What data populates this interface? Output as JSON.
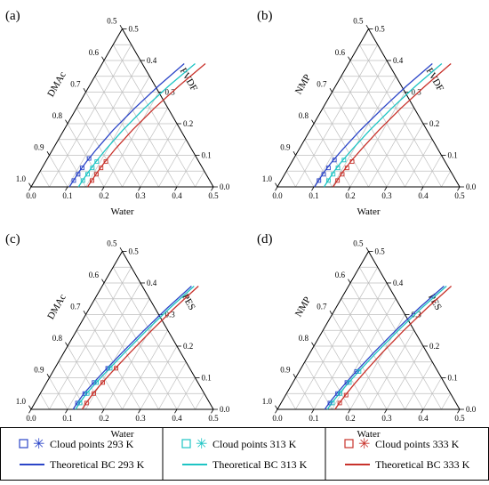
{
  "colors": {
    "k293": "#2b45c8",
    "k313": "#1ec4c4",
    "k333": "#c8322b",
    "grid": "#bfbfbf",
    "axis": "#000000"
  },
  "ticks": [
    "0.0",
    "0.1",
    "0.2",
    "0.3",
    "0.4",
    "0.5"
  ],
  "left_ticks": [
    "1.0",
    "0.9",
    "0.8",
    "0.7",
    "0.6",
    "0.5"
  ],
  "legend": {
    "cloud_293": "Cloud points 293 K",
    "cloud_313": "Cloud points 313 K",
    "cloud_333": "Cloud points 333 K",
    "bc_293": "Theoretical BC 293 K",
    "bc_313": "Theoretical BC 313 K",
    "bc_333": "Theoretical BC 333 K"
  },
  "chart_data": [
    {
      "type": "ternary",
      "panel": "(a)",
      "axes": {
        "bottom": "Water",
        "left": "DMAc",
        "right": "PVDF"
      },
      "range": [
        0,
        0.5
      ],
      "series": [
        {
          "temp": "293 K",
          "kind": "binodal",
          "points": [
            [
              0.105,
              0.0
            ],
            [
              0.106,
              0.02
            ],
            [
              0.108,
              0.05
            ],
            [
              0.112,
              0.08
            ],
            [
              0.12,
              0.12
            ],
            [
              0.135,
              0.18
            ],
            [
              0.16,
              0.25
            ],
            [
              0.19,
              0.32
            ],
            [
              0.225,
              0.39
            ]
          ]
        },
        {
          "temp": "313 K",
          "kind": "binodal",
          "points": [
            [
              0.13,
              0.0
            ],
            [
              0.131,
              0.02
            ],
            [
              0.134,
              0.05
            ],
            [
              0.138,
              0.08
            ],
            [
              0.146,
              0.12
            ],
            [
              0.162,
              0.18
            ],
            [
              0.187,
              0.25
            ],
            [
              0.218,
              0.32
            ],
            [
              0.255,
              0.39
            ]
          ]
        },
        {
          "temp": "333 K",
          "kind": "binodal",
          "points": [
            [
              0.155,
              0.0
            ],
            [
              0.156,
              0.02
            ],
            [
              0.159,
              0.05
            ],
            [
              0.163,
              0.08
            ],
            [
              0.171,
              0.12
            ],
            [
              0.188,
              0.18
            ],
            [
              0.214,
              0.25
            ],
            [
              0.246,
              0.32
            ],
            [
              0.283,
              0.39
            ]
          ]
        },
        {
          "temp": "293 K",
          "kind": "cloud",
          "points": [
            [
              0.107,
              0.02
            ],
            [
              0.109,
              0.04
            ],
            [
              0.11,
              0.06
            ],
            [
              0.114,
              0.09
            ]
          ]
        },
        {
          "temp": "313 K",
          "kind": "cloud",
          "points": [
            [
              0.132,
              0.02
            ],
            [
              0.135,
              0.04
            ],
            [
              0.138,
              0.06
            ],
            [
              0.14,
              0.08
            ]
          ]
        },
        {
          "temp": "333 K",
          "kind": "cloud",
          "points": [
            [
              0.157,
              0.02
            ],
            [
              0.159,
              0.04
            ],
            [
              0.162,
              0.06
            ],
            [
              0.165,
              0.08
            ]
          ]
        }
      ]
    },
    {
      "type": "ternary",
      "panel": "(b)",
      "axes": {
        "bottom": "Water",
        "left": "NMP",
        "right": "PVDF"
      },
      "range": [
        0,
        0.5
      ],
      "series": [
        {
          "temp": "293 K",
          "kind": "binodal",
          "points": [
            [
              0.102,
              0.0
            ],
            [
              0.103,
              0.02
            ],
            [
              0.105,
              0.05
            ],
            [
              0.11,
              0.08
            ],
            [
              0.12,
              0.12
            ],
            [
              0.138,
              0.18
            ],
            [
              0.165,
              0.25
            ],
            [
              0.195,
              0.32
            ],
            [
              0.23,
              0.39
            ]
          ]
        },
        {
          "temp": "313 K",
          "kind": "binodal",
          "points": [
            [
              0.128,
              0.0
            ],
            [
              0.129,
              0.02
            ],
            [
              0.131,
              0.05
            ],
            [
              0.136,
              0.08
            ],
            [
              0.146,
              0.12
            ],
            [
              0.164,
              0.18
            ],
            [
              0.19,
              0.25
            ],
            [
              0.22,
              0.32
            ],
            [
              0.256,
              0.39
            ]
          ]
        },
        {
          "temp": "333 K",
          "kind": "binodal",
          "points": [
            [
              0.153,
              0.0
            ],
            [
              0.154,
              0.02
            ],
            [
              0.156,
              0.05
            ],
            [
              0.161,
              0.08
            ],
            [
              0.171,
              0.12
            ],
            [
              0.189,
              0.18
            ],
            [
              0.215,
              0.25
            ],
            [
              0.246,
              0.32
            ],
            [
              0.281,
              0.39
            ]
          ]
        },
        {
          "temp": "293 K",
          "kind": "cloud",
          "points": [
            [
              0.104,
              0.02
            ],
            [
              0.107,
              0.04
            ],
            [
              0.11,
              0.06
            ],
            [
              0.114,
              0.085
            ]
          ]
        },
        {
          "temp": "313 K",
          "kind": "cloud",
          "points": [
            [
              0.13,
              0.02
            ],
            [
              0.133,
              0.04
            ],
            [
              0.136,
              0.06
            ],
            [
              0.14,
              0.085
            ]
          ]
        },
        {
          "temp": "333 K",
          "kind": "cloud",
          "points": [
            [
              0.155,
              0.02
            ],
            [
              0.158,
              0.04
            ],
            [
              0.161,
              0.06
            ],
            [
              0.165,
              0.08
            ]
          ]
        }
      ]
    },
    {
      "type": "ternary",
      "panel": "(c)",
      "axes": {
        "bottom": "Water",
        "left": "DMAc",
        "right": "PES"
      },
      "range": [
        0,
        0.5
      ],
      "series": [
        {
          "temp": "293 K",
          "kind": "binodal",
          "points": [
            [
              0.115,
              0.0
            ],
            [
              0.116,
              0.02
            ],
            [
              0.12,
              0.05
            ],
            [
              0.128,
              0.08
            ],
            [
              0.14,
              0.12
            ],
            [
              0.16,
              0.18
            ],
            [
              0.185,
              0.25
            ],
            [
              0.213,
              0.32
            ],
            [
              0.245,
              0.39
            ]
          ]
        },
        {
          "temp": "313 K",
          "kind": "binodal",
          "points": [
            [
              0.122,
              0.0
            ],
            [
              0.123,
              0.02
            ],
            [
              0.127,
              0.05
            ],
            [
              0.135,
              0.08
            ],
            [
              0.147,
              0.12
            ],
            [
              0.167,
              0.18
            ],
            [
              0.192,
              0.25
            ],
            [
              0.22,
              0.32
            ],
            [
              0.252,
              0.39
            ]
          ]
        },
        {
          "temp": "333 K",
          "kind": "binodal",
          "points": [
            [
              0.14,
              0.0
            ],
            [
              0.141,
              0.02
            ],
            [
              0.145,
              0.05
            ],
            [
              0.152,
              0.08
            ],
            [
              0.163,
              0.12
            ],
            [
              0.182,
              0.18
            ],
            [
              0.206,
              0.25
            ],
            [
              0.233,
              0.32
            ],
            [
              0.264,
              0.39
            ]
          ]
        },
        {
          "temp": "293 K",
          "kind": "cloud",
          "points": [
            [
              0.117,
              0.02
            ],
            [
              0.122,
              0.05
            ],
            [
              0.13,
              0.085
            ],
            [
              0.145,
              0.13
            ]
          ]
        },
        {
          "temp": "313 K",
          "kind": "cloud",
          "points": [
            [
              0.124,
              0.02
            ],
            [
              0.129,
              0.05
            ],
            [
              0.137,
              0.085
            ],
            [
              0.152,
              0.13
            ]
          ]
        },
        {
          "temp": "333 K",
          "kind": "cloud",
          "points": [
            [
              0.142,
              0.02
            ],
            [
              0.147,
              0.05
            ],
            [
              0.154,
              0.085
            ],
            [
              0.168,
              0.13
            ]
          ]
        }
      ]
    },
    {
      "type": "ternary",
      "panel": "(d)",
      "axes": {
        "bottom": "Water",
        "left": "NMP",
        "right": "PES"
      },
      "range": [
        0,
        0.5
      ],
      "series": [
        {
          "temp": "293 K",
          "kind": "binodal",
          "points": [
            [
              0.13,
              0.0
            ],
            [
              0.132,
              0.02
            ],
            [
              0.138,
              0.05
            ],
            [
              0.145,
              0.08
            ],
            [
              0.156,
              0.12
            ],
            [
              0.175,
              0.18
            ],
            [
              0.2,
              0.25
            ],
            [
              0.228,
              0.32
            ],
            [
              0.262,
              0.39
            ]
          ]
        },
        {
          "temp": "313 K",
          "kind": "binodal",
          "points": [
            [
              0.137,
              0.0
            ],
            [
              0.139,
              0.02
            ],
            [
              0.145,
              0.05
            ],
            [
              0.152,
              0.08
            ],
            [
              0.163,
              0.12
            ],
            [
              0.182,
              0.18
            ],
            [
              0.207,
              0.25
            ],
            [
              0.235,
              0.32
            ],
            [
              0.269,
              0.39
            ]
          ]
        },
        {
          "temp": "333 K",
          "kind": "binodal",
          "points": [
            [
              0.158,
              0.0
            ],
            [
              0.16,
              0.02
            ],
            [
              0.165,
              0.05
            ],
            [
              0.171,
              0.08
            ],
            [
              0.181,
              0.12
            ],
            [
              0.198,
              0.18
            ],
            [
              0.222,
              0.25
            ],
            [
              0.25,
              0.32
            ],
            [
              0.282,
              0.39
            ]
          ]
        },
        {
          "temp": "293 K",
          "kind": "cloud",
          "points": [
            [
              0.134,
              0.02
            ],
            [
              0.14,
              0.05
            ],
            [
              0.148,
              0.085
            ],
            [
              0.157,
              0.12
            ]
          ]
        },
        {
          "temp": "313 K",
          "kind": "cloud",
          "points": [
            [
              0.141,
              0.02
            ],
            [
              0.147,
              0.05
            ],
            [
              0.155,
              0.085
            ],
            [
              0.164,
              0.12
            ]
          ]
        },
        {
          "temp": "333 K",
          "kind": "cloud",
          "points": [
            [
              0.161,
              0.02
            ],
            [
              0.166,
              0.045
            ]
          ]
        }
      ]
    }
  ]
}
